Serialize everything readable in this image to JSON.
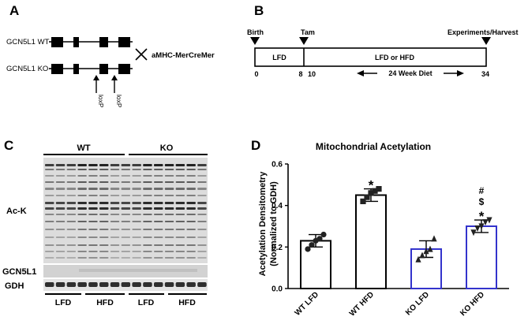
{
  "panels": {
    "a": "A",
    "b": "B",
    "c": "C",
    "d": "D"
  },
  "panel_a": {
    "wt_label": "GCN5L1 WT-",
    "ko_label": "GCN5L1 KO-",
    "cross": "✕",
    "cre_label": "aMHC-MerCreMer",
    "loxp_labels": [
      "loxP",
      "loxP"
    ]
  },
  "panel_b": {
    "events": [
      "Birth",
      "Tam",
      "Experiments/Harvest"
    ],
    "phase1": "LFD",
    "phase2": "LFD or HFD",
    "diet_label": "24 Week Diet",
    "ticks": [
      "0",
      "8",
      "10",
      "34"
    ]
  },
  "panel_c": {
    "group_labels": [
      "WT",
      "KO"
    ],
    "blot_labels": [
      "Ac-K",
      "GCN5L1",
      "GDH"
    ],
    "diet_labels": [
      "LFD",
      "HFD",
      "LFD",
      "HFD"
    ]
  },
  "chart_data": {
    "type": "bar",
    "title": "Mitochondrial Acetylation",
    "ylabel_lines": [
      "Acetylation Densitometry",
      "(Normalized to GDH)"
    ],
    "categories": [
      "WT LFD",
      "WT HFD",
      "KO LFD",
      "KO HFD"
    ],
    "values": [
      0.23,
      0.45,
      0.19,
      0.3
    ],
    "errors": [
      0.03,
      0.03,
      0.04,
      0.03
    ],
    "points": [
      [
        0.19,
        0.21,
        0.23,
        0.24,
        0.26
      ],
      [
        0.42,
        0.44,
        0.46,
        0.47,
        0.48
      ],
      [
        0.14,
        0.16,
        0.18,
        0.19,
        0.24
      ],
      [
        0.27,
        0.29,
        0.3,
        0.32,
        0.33
      ]
    ],
    "marker_shapes": [
      "circle",
      "square",
      "triangle",
      "triangle-down"
    ],
    "bar_colors": [
      "#000000",
      "#000000",
      "#3333cc",
      "#3333cc"
    ],
    "annotations": [
      [],
      [
        "*"
      ],
      [],
      [
        "#",
        "$",
        "*"
      ]
    ],
    "ylim": [
      0.0,
      0.6
    ],
    "yticks": [
      "0.0",
      "0.2",
      "0.4",
      "0.6"
    ]
  }
}
